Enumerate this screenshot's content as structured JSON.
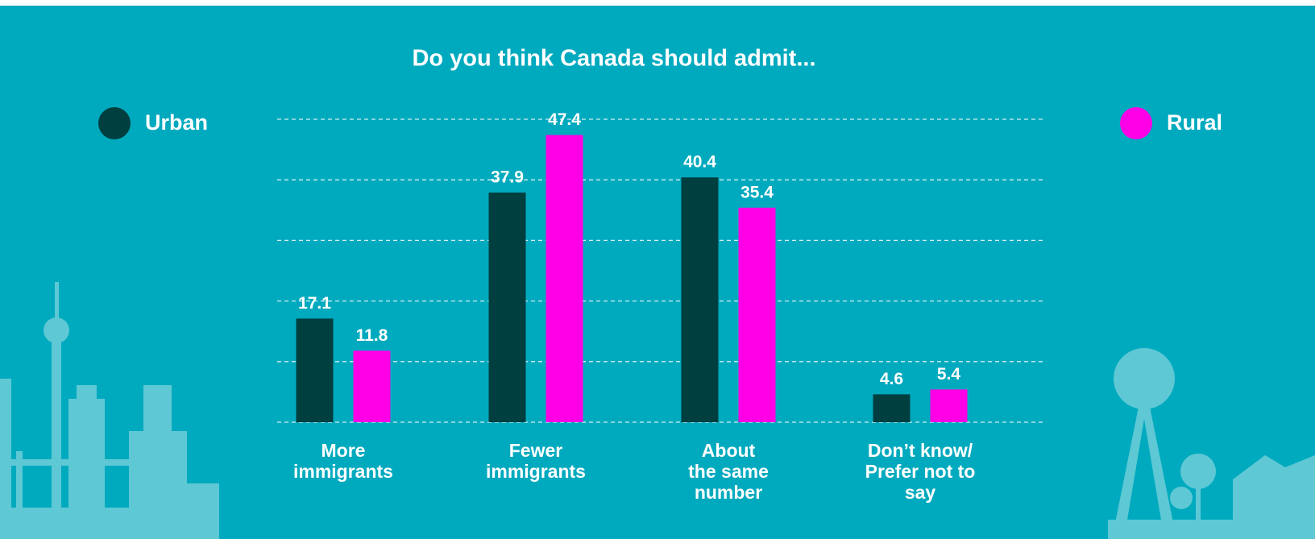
{
  "chart_data": {
    "type": "bar",
    "title": "Do you think Canada should admit...",
    "categories": [
      [
        "More",
        "immigrants"
      ],
      [
        "Fewer",
        "immigrants"
      ],
      [
        "About",
        "the same",
        "number"
      ],
      [
        "Don’t know/",
        "Prefer not to",
        "say"
      ]
    ],
    "series": [
      {
        "name": "Urban",
        "color": "#003f40",
        "values": [
          17.1,
          37.9,
          40.4,
          4.6
        ]
      },
      {
        "name": "Rural",
        "color": "#ff00e6",
        "values": [
          11.8,
          47.4,
          35.4,
          5.4
        ]
      }
    ],
    "ylim": [
      0,
      50
    ],
    "yticks": [
      0,
      10,
      20,
      30,
      40,
      50
    ],
    "grid": true
  }
}
